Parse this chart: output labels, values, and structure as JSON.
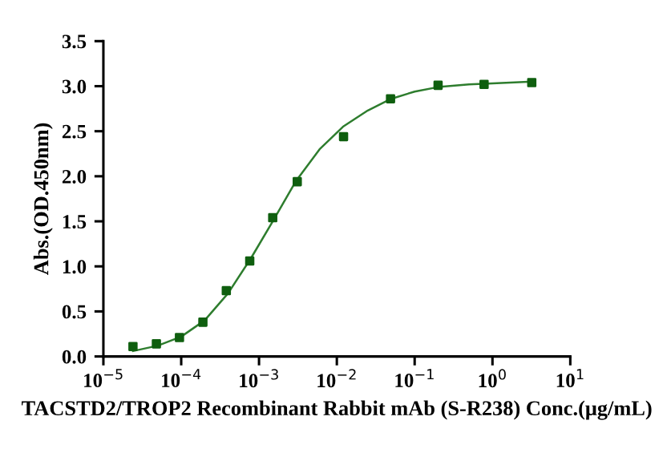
{
  "chart_data": {
    "type": "scatter",
    "xlabel": "TACSTD2/TROP2 Recombinant Rabbit mAb (S-R238) Conc.(μg/mL)",
    "ylabel": "Abs.(OD.450nm)",
    "log": "x",
    "xlim": [
      1e-05,
      10
    ],
    "ylim": [
      0,
      3.5
    ],
    "xticks": [
      {
        "value": 1e-05,
        "label": "10$^{−5}$"
      },
      {
        "value": 0.0001,
        "label": "10$^{−4}$"
      },
      {
        "value": 0.001,
        "label": "10$^{−3}$"
      },
      {
        "value": 0.01,
        "label": "10$^{−2}$"
      },
      {
        "value": 0.1,
        "label": "10$^{−1}$"
      },
      {
        "value": 1,
        "label": "10$^{0}$"
      },
      {
        "value": 10,
        "label": "10$^{1}$"
      }
    ],
    "yticks": [
      {
        "value": 0,
        "label": "0.0"
      },
      {
        "value": 0.5,
        "label": "0.5"
      },
      {
        "value": 1,
        "label": "1.0"
      },
      {
        "value": 1.5,
        "label": "1.5"
      },
      {
        "value": 2,
        "label": "2.0"
      },
      {
        "value": 2.5,
        "label": "2.5"
      },
      {
        "value": 3,
        "label": "3.0"
      },
      {
        "value": 3.5,
        "label": "3.5"
      }
    ],
    "grid": false,
    "legend": false,
    "series": [
      {
        "marker": "square",
        "color": "#0f5f0f",
        "x": [
          2.4e-05,
          4.8e-05,
          9.5e-05,
          0.00019,
          0.00038,
          0.00076,
          0.0015,
          0.0031,
          0.0122,
          0.049,
          0.2,
          0.78,
          3.2
        ],
        "values": [
          0.11,
          0.14,
          0.21,
          0.38,
          0.73,
          1.06,
          1.54,
          1.94,
          2.44,
          2.86,
          3.01,
          3.02,
          3.04
        ]
      },
      {
        "type": "line",
        "marker": "none",
        "line_style": "solid",
        "color": "#2e7d2e",
        "x": [
          2.4e-05,
          5e-05,
          0.0001,
          0.0002,
          0.0004,
          0.0008,
          0.0015,
          0.003,
          0.006,
          0.012,
          0.025,
          0.05,
          0.1,
          0.2,
          0.5,
          1,
          3.2
        ],
        "values": [
          0.06,
          0.12,
          0.22,
          0.4,
          0.7,
          1.1,
          1.5,
          1.95,
          2.3,
          2.55,
          2.73,
          2.86,
          2.94,
          2.99,
          3.02,
          3.03,
          3.05
        ]
      }
    ]
  }
}
